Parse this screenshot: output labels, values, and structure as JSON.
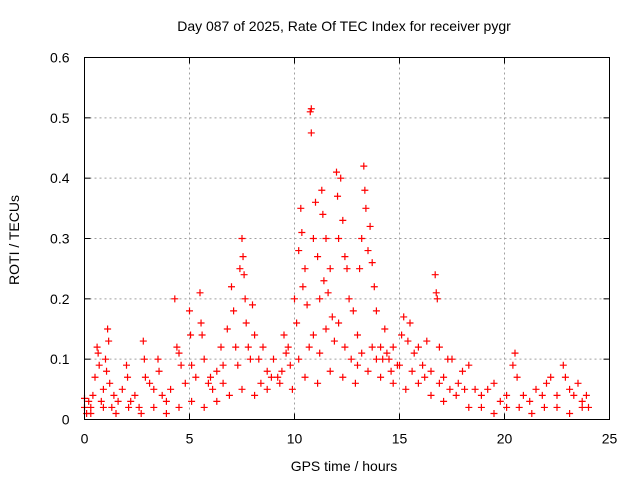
{
  "chart_data": {
    "type": "scatter",
    "title": "Day 087 of 2025, Rate Of TEC Index for receiver pygr",
    "xlabel": "GPS time / hours",
    "ylabel": "ROTI / TECUs",
    "xlim": [
      0,
      25
    ],
    "ylim": [
      0,
      0.6
    ],
    "xticks": [
      "0",
      "5",
      "10",
      "15",
      "20",
      "25"
    ],
    "yticks": [
      "0",
      "0.1",
      "0.2",
      "0.3",
      "0.4",
      "0.5",
      "0.6"
    ],
    "grid": true,
    "marker": "plus",
    "series": [
      {
        "name": "ROTI",
        "color": "#ff0000",
        "points": [
          [
            0,
            0.02
          ],
          [
            0,
            0.035
          ],
          [
            0.1,
            0.01
          ],
          [
            0.2,
            0.03
          ],
          [
            0.3,
            0.02
          ],
          [
            0.4,
            0.04
          ],
          [
            0.5,
            0.07
          ],
          [
            0.6,
            0.12
          ],
          [
            0.65,
            0.11
          ],
          [
            0.7,
            0.09
          ],
          [
            0.8,
            0.03
          ],
          [
            0.9,
            0.05
          ],
          [
            1.0,
            0.1
          ],
          [
            1.05,
            0.08
          ],
          [
            1.1,
            0.15
          ],
          [
            1.15,
            0.13
          ],
          [
            1.2,
            0.06
          ],
          [
            1.3,
            0.02
          ],
          [
            1.4,
            0.04
          ],
          [
            1.6,
            0.03
          ],
          [
            1.8,
            0.05
          ],
          [
            2.0,
            0.09
          ],
          [
            2.05,
            0.07
          ],
          [
            2.2,
            0.03
          ],
          [
            2.4,
            0.04
          ],
          [
            2.6,
            0.02
          ],
          [
            2.8,
            0.13
          ],
          [
            2.85,
            0.1
          ],
          [
            2.9,
            0.07
          ],
          [
            3.1,
            0.06
          ],
          [
            3.3,
            0.05
          ],
          [
            3.5,
            0.1
          ],
          [
            3.55,
            0.08
          ],
          [
            3.7,
            0.04
          ],
          [
            3.9,
            0.03
          ],
          [
            4.1,
            0.05
          ],
          [
            4.3,
            0.2
          ],
          [
            4.4,
            0.12
          ],
          [
            4.5,
            0.11
          ],
          [
            4.6,
            0.09
          ],
          [
            4.8,
            0.06
          ],
          [
            5.0,
            0.18
          ],
          [
            5.05,
            0.14
          ],
          [
            5.1,
            0.09
          ],
          [
            5.3,
            0.07
          ],
          [
            5.5,
            0.21
          ],
          [
            5.55,
            0.16
          ],
          [
            5.6,
            0.14
          ],
          [
            5.7,
            0.1
          ],
          [
            5.9,
            0.06
          ],
          [
            6.1,
            0.05
          ],
          [
            6.3,
            0.08
          ],
          [
            6.5,
            0.12
          ],
          [
            6.6,
            0.09
          ],
          [
            6.8,
            0.15
          ],
          [
            7.0,
            0.22
          ],
          [
            7.1,
            0.18
          ],
          [
            7.2,
            0.12
          ],
          [
            7.4,
            0.25
          ],
          [
            7.5,
            0.3
          ],
          [
            7.55,
            0.27
          ],
          [
            7.6,
            0.24
          ],
          [
            7.65,
            0.2
          ],
          [
            7.7,
            0.16
          ],
          [
            7.8,
            0.12
          ],
          [
            8.0,
            0.19
          ],
          [
            8.1,
            0.14
          ],
          [
            8.3,
            0.1
          ],
          [
            8.5,
            0.12
          ],
          [
            8.7,
            0.08
          ],
          [
            9.0,
            0.1
          ],
          [
            9.2,
            0.07
          ],
          [
            9.5,
            0.14
          ],
          [
            9.6,
            0.11
          ],
          [
            9.8,
            0.09
          ],
          [
            10.0,
            0.2
          ],
          [
            10.1,
            0.16
          ],
          [
            10.2,
            0.28
          ],
          [
            10.3,
            0.35
          ],
          [
            10.35,
            0.31
          ],
          [
            10.4,
            0.22
          ],
          [
            10.5,
            0.25
          ],
          [
            10.6,
            0.19
          ],
          [
            10.75,
            0.51
          ],
          [
            10.8,
            0.515
          ],
          [
            10.8,
            0.475
          ],
          [
            10.9,
            0.3
          ],
          [
            11.0,
            0.36
          ],
          [
            11.1,
            0.27
          ],
          [
            11.2,
            0.2
          ],
          [
            11.3,
            0.38
          ],
          [
            11.35,
            0.34
          ],
          [
            11.4,
            0.23
          ],
          [
            11.5,
            0.3
          ],
          [
            11.6,
            0.21
          ],
          [
            11.7,
            0.25
          ],
          [
            11.8,
            0.17
          ],
          [
            12.0,
            0.41
          ],
          [
            12.05,
            0.37
          ],
          [
            12.1,
            0.3
          ],
          [
            12.2,
            0.4
          ],
          [
            12.3,
            0.33
          ],
          [
            12.4,
            0.27
          ],
          [
            12.5,
            0.25
          ],
          [
            12.6,
            0.2
          ],
          [
            12.8,
            0.18
          ],
          [
            13.0,
            0.14
          ],
          [
            13.1,
            0.25
          ],
          [
            13.2,
            0.3
          ],
          [
            13.3,
            0.42
          ],
          [
            13.35,
            0.38
          ],
          [
            13.4,
            0.35
          ],
          [
            13.5,
            0.28
          ],
          [
            13.6,
            0.32
          ],
          [
            13.7,
            0.26
          ],
          [
            13.8,
            0.22
          ],
          [
            13.9,
            0.18
          ],
          [
            14.1,
            0.12
          ],
          [
            14.3,
            0.15
          ],
          [
            14.5,
            0.1
          ],
          [
            14.7,
            0.12
          ],
          [
            14.9,
            0.09
          ],
          [
            15.1,
            0.14
          ],
          [
            15.2,
            0.17
          ],
          [
            15.4,
            0.13
          ],
          [
            15.5,
            0.16
          ],
          [
            15.7,
            0.11
          ],
          [
            15.9,
            0.12
          ],
          [
            16.1,
            0.09
          ],
          [
            16.3,
            0.13
          ],
          [
            16.5,
            0.08
          ],
          [
            16.7,
            0.24
          ],
          [
            16.75,
            0.21
          ],
          [
            16.8,
            0.2
          ],
          [
            16.9,
            0.12
          ],
          [
            17.1,
            0.07
          ],
          [
            17.3,
            0.1
          ],
          [
            17.5,
            0.1
          ],
          [
            17.8,
            0.06
          ],
          [
            18.0,
            0.08
          ],
          [
            18.3,
            0.09
          ],
          [
            18.6,
            0.05
          ],
          [
            18.9,
            0.04
          ],
          [
            19.2,
            0.05
          ],
          [
            19.5,
            0.06
          ],
          [
            19.8,
            0.03
          ],
          [
            20.1,
            0.04
          ],
          [
            20.4,
            0.09
          ],
          [
            20.5,
            0.11
          ],
          [
            20.6,
            0.07
          ],
          [
            20.9,
            0.04
          ],
          [
            21.2,
            0.03
          ],
          [
            21.5,
            0.05
          ],
          [
            21.8,
            0.04
          ],
          [
            22.0,
            0.06
          ],
          [
            22.2,
            0.07
          ],
          [
            22.5,
            0.04
          ],
          [
            22.8,
            0.09
          ],
          [
            22.9,
            0.07
          ],
          [
            23.1,
            0.05
          ],
          [
            23.3,
            0.04
          ],
          [
            23.5,
            0.06
          ],
          [
            23.7,
            0.03
          ],
          [
            23.9,
            0.04
          ],
          [
            24.0,
            0.02
          ],
          [
            0.3,
            0.01
          ],
          [
            0.9,
            0.02
          ],
          [
            1.5,
            0.01
          ],
          [
            2.1,
            0.02
          ],
          [
            2.7,
            0.01
          ],
          [
            3.3,
            0.02
          ],
          [
            3.9,
            0.01
          ],
          [
            4.5,
            0.02
          ],
          [
            5.1,
            0.03
          ],
          [
            5.7,
            0.02
          ],
          [
            6.3,
            0.03
          ],
          [
            6.9,
            0.04
          ],
          [
            7.5,
            0.05
          ],
          [
            8.1,
            0.04
          ],
          [
            8.7,
            0.05
          ],
          [
            9.3,
            0.06
          ],
          [
            9.9,
            0.05
          ],
          [
            10.5,
            0.07
          ],
          [
            11.1,
            0.06
          ],
          [
            11.7,
            0.08
          ],
          [
            12.3,
            0.07
          ],
          [
            12.9,
            0.06
          ],
          [
            13.5,
            0.08
          ],
          [
            14.1,
            0.07
          ],
          [
            14.7,
            0.06
          ],
          [
            15.3,
            0.05
          ],
          [
            15.9,
            0.06
          ],
          [
            16.5,
            0.04
          ],
          [
            17.1,
            0.03
          ],
          [
            17.7,
            0.04
          ],
          [
            18.3,
            0.02
          ],
          [
            18.9,
            0.02
          ],
          [
            19.5,
            0.01
          ],
          [
            20.1,
            0.02
          ],
          [
            20.7,
            0.02
          ],
          [
            21.3,
            0.01
          ],
          [
            21.9,
            0.02
          ],
          [
            22.5,
            0.02
          ],
          [
            23.1,
            0.01
          ],
          [
            23.7,
            0.02
          ],
          [
            7.3,
            0.09
          ],
          [
            7.9,
            0.1
          ],
          [
            8.4,
            0.06
          ],
          [
            8.9,
            0.07
          ],
          [
            9.4,
            0.08
          ],
          [
            9.7,
            0.12
          ],
          [
            10.2,
            0.1
          ],
          [
            10.7,
            0.12
          ],
          [
            11.2,
            0.11
          ],
          [
            11.9,
            0.13
          ],
          [
            12.4,
            0.12
          ],
          [
            12.7,
            0.1
          ],
          [
            13.2,
            0.11
          ],
          [
            13.7,
            0.12
          ],
          [
            14.2,
            0.1
          ],
          [
            14.6,
            0.08
          ],
          [
            15.0,
            0.09
          ],
          [
            15.6,
            0.08
          ],
          [
            16.2,
            0.07
          ],
          [
            16.9,
            0.06
          ],
          [
            6.0,
            0.07
          ],
          [
            6.6,
            0.06
          ],
          [
            17.4,
            0.05
          ],
          [
            18.1,
            0.05
          ],
          [
            11.5,
            0.15
          ],
          [
            12.1,
            0.16
          ],
          [
            10.9,
            0.14
          ],
          [
            13.0,
            0.09
          ],
          [
            13.9,
            0.1
          ],
          [
            14.4,
            0.11
          ]
        ]
      }
    ]
  }
}
